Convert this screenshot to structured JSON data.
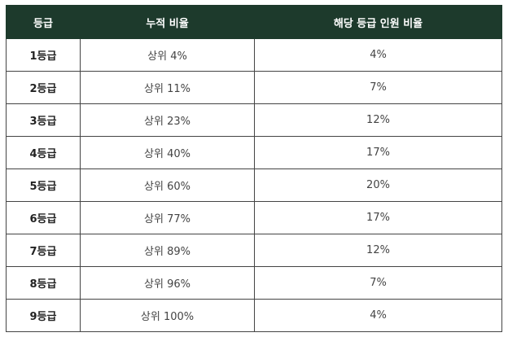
{
  "table": {
    "headers": [
      "등급",
      "누적 비율",
      "해당 등급 인원 비율"
    ],
    "rows": [
      {
        "grade": "1등급",
        "cumulative": "상위 4%",
        "ratio": "4%"
      },
      {
        "grade": "2등급",
        "cumulative": "상위 11%",
        "ratio": "7%"
      },
      {
        "grade": "3등급",
        "cumulative": "상위 23%",
        "ratio": "12%"
      },
      {
        "grade": "4등급",
        "cumulative": "상위 40%",
        "ratio": "17%"
      },
      {
        "grade": "5등급",
        "cumulative": "상위 60%",
        "ratio": "20%"
      },
      {
        "grade": "6등급",
        "cumulative": "상위 77%",
        "ratio": "17%"
      },
      {
        "grade": "7등급",
        "cumulative": "상위 89%",
        "ratio": "12%"
      },
      {
        "grade": "8등급",
        "cumulative": "상위 96%",
        "ratio": "7%"
      },
      {
        "grade": "9등급",
        "cumulative": "상위 100%",
        "ratio": "4%"
      }
    ]
  },
  "colors": {
    "header_bg": "#1d3a2c",
    "header_text": "#ffffff",
    "border": "#444444"
  }
}
